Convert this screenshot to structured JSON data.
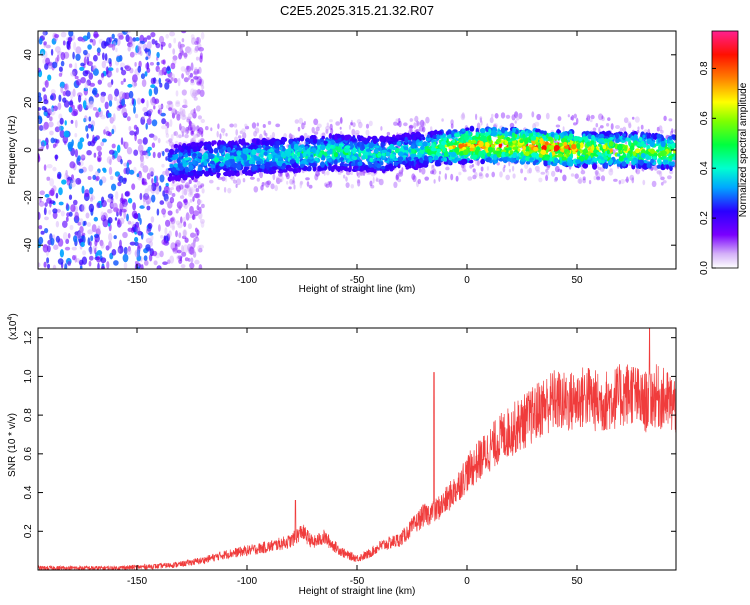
{
  "title": "C2E5.2025.315.21.32.R07",
  "chart_data": [
    {
      "type": "heatmap",
      "xlabel": "Height of straight line (km)",
      "ylabel": "Frequency (Hz)",
      "xlim": [
        -195,
        95
      ],
      "ylim": [
        -50,
        50
      ],
      "xticks": [
        -150,
        -100,
        -50,
        0,
        50
      ],
      "yticks": [
        -40,
        -20,
        0,
        20,
        40
      ],
      "colorbar": {
        "label": "Normalized spectral amplitude",
        "range": [
          0,
          0.95
        ],
        "ticks": [
          0.0,
          0.2,
          0.4,
          0.6,
          0.8
        ]
      },
      "noise_region_end_km": -135,
      "center_trace": {
        "x": [
          -140,
          -120,
          -100,
          -80,
          -60,
          -40,
          -20,
          0,
          20,
          40,
          60,
          80,
          95
        ],
        "freq_hz": [
          -6,
          -4,
          -3,
          -2,
          -1,
          -2,
          0,
          2,
          2,
          1,
          0,
          0,
          -1
        ],
        "amplitude": [
          0.25,
          0.3,
          0.3,
          0.35,
          0.4,
          0.35,
          0.35,
          0.7,
          0.75,
          0.8,
          0.6,
          0.55,
          0.5
        ]
      }
    },
    {
      "type": "line",
      "xlabel": "Height of straight line (km)",
      "ylabel": "SNR (10 * v/v)",
      "yscale_label": "(x10",
      "yscale_exp": "4",
      "xlim": [
        -195,
        95
      ],
      "ylim": [
        0,
        1.25
      ],
      "xticks": [
        -150,
        -100,
        -50,
        0,
        50
      ],
      "yticks": [
        0.2,
        0.4,
        0.6,
        0.8,
        1.0,
        1.2
      ],
      "color": "#f03c3c",
      "series": [
        {
          "x": [
            -195,
            -180,
            -160,
            -140,
            -130,
            -120,
            -110,
            -100,
            -90,
            -80,
            -75,
            -70,
            -65,
            -60,
            -55,
            -50,
            -45,
            -40,
            -35,
            -30,
            -25,
            -20,
            -15,
            -10,
            -5,
            0,
            5,
            10,
            15,
            20,
            25,
            30,
            35,
            40,
            45,
            50,
            55,
            60,
            65,
            70,
            75,
            80,
            85,
            90,
            95
          ],
          "values": [
            0.01,
            0.01,
            0.01,
            0.02,
            0.03,
            0.05,
            0.08,
            0.1,
            0.12,
            0.15,
            0.2,
            0.14,
            0.17,
            0.12,
            0.08,
            0.06,
            0.08,
            0.12,
            0.14,
            0.16,
            0.22,
            0.28,
            0.3,
            0.35,
            0.42,
            0.5,
            0.56,
            0.62,
            0.68,
            0.72,
            0.76,
            0.8,
            0.85,
            0.88,
            0.86,
            0.88,
            0.9,
            0.86,
            0.88,
            0.9,
            0.92,
            0.86,
            0.9,
            0.88,
            0.85
          ]
        }
      ],
      "spikes": [
        {
          "x": -15,
          "value": 1.02
        },
        {
          "x": -78,
          "value": 0.36
        },
        {
          "x": 83,
          "value": 1.25
        }
      ]
    }
  ]
}
